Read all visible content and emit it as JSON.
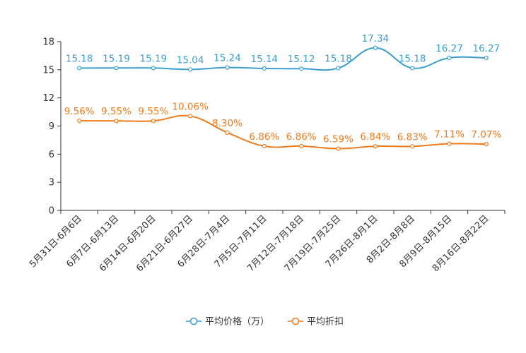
{
  "chart_data": {
    "type": "line",
    "title": "",
    "xlabel": "",
    "ylabel": "",
    "ylim": [
      0,
      18
    ],
    "yticks": [
      0,
      3,
      6,
      9,
      12,
      15,
      18
    ],
    "ytick_labels": [
      "0",
      "3",
      "6",
      "9",
      "12",
      "15",
      "18"
    ],
    "grid": false,
    "legend_position": "bottom-center",
    "categories": [
      "5月31日-6月6日",
      "6月7日-6月13日",
      "6月14日-6月20日",
      "6月21日-6月27日",
      "6月28日-7月4日",
      "7月5日-7月11日",
      "7月12日-7月18日",
      "7月19日-7月25日",
      "7月26日-8月1日",
      "8月2日-8月8日",
      "8月9日-8月15日",
      "8月16日-8月22日"
    ],
    "series": [
      {
        "name": "平均价格（万）",
        "color": "#3a9fd0",
        "values": [
          15.18,
          15.19,
          15.19,
          15.04,
          15.24,
          15.14,
          15.12,
          15.18,
          17.34,
          15.18,
          16.27,
          16.27
        ],
        "labels": [
          "15.18",
          "15.19",
          "15.19",
          "15.04",
          "15.24",
          "15.14",
          "15.12",
          "15.18",
          "17.34",
          "15.18",
          "16.27",
          "16.27"
        ]
      },
      {
        "name": "平均折扣",
        "color": "#ef7b1d",
        "values": [
          9.56,
          9.55,
          9.55,
          10.06,
          8.3,
          6.86,
          6.86,
          6.59,
          6.84,
          6.83,
          7.11,
          7.07
        ],
        "labels": [
          "9.56%",
          "9.55%",
          "9.55%",
          "10.06%",
          "8.30%",
          "6.86%",
          "6.86%",
          "6.59%",
          "6.84%",
          "6.83%",
          "7.11%",
          "7.07%"
        ]
      }
    ]
  }
}
